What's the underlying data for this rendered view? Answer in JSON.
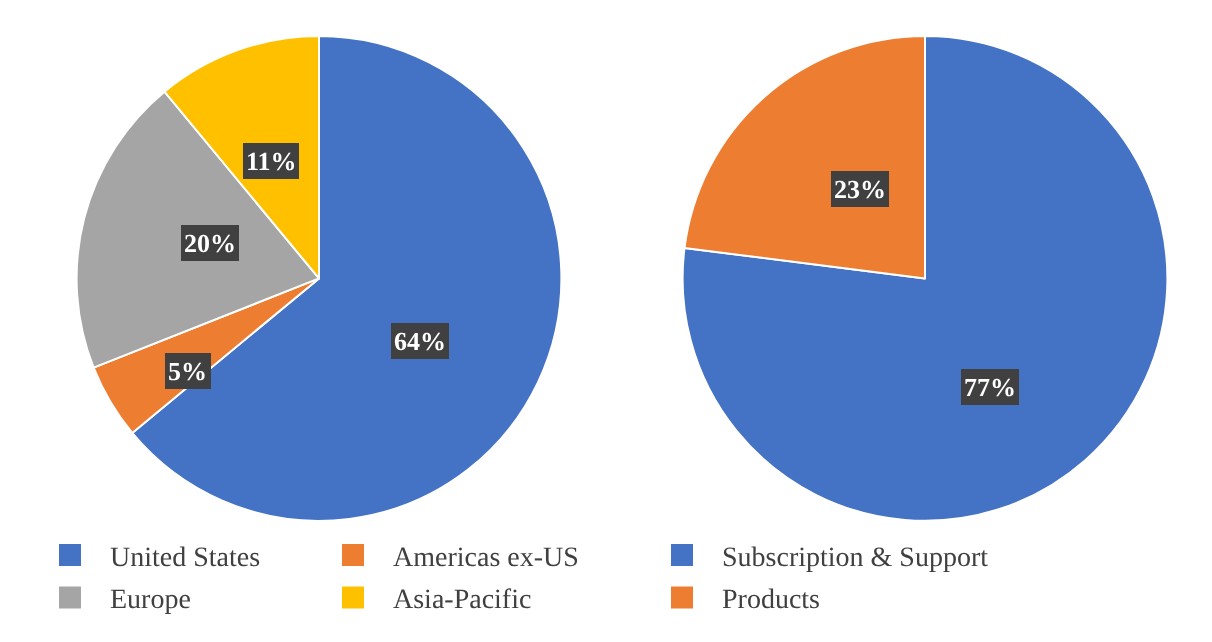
{
  "chart_data": [
    {
      "type": "pie",
      "categories": [
        "United States",
        "Americas ex-US",
        "Europe",
        "Asia-Pacific"
      ],
      "values": [
        64,
        5,
        20,
        11
      ],
      "colors": [
        "#4472c4",
        "#ed7d31",
        "#a5a5a5",
        "#ffc000"
      ],
      "value_labels": [
        "64%",
        "5%",
        "20%",
        "11%"
      ],
      "legend": "bottom"
    },
    {
      "type": "pie",
      "categories": [
        "Subscription & Support",
        "Products"
      ],
      "values": [
        77,
        23
      ],
      "colors": [
        "#4472c4",
        "#ed7d31"
      ],
      "value_labels": [
        "77%",
        "23%"
      ],
      "legend": "bottom"
    }
  ]
}
